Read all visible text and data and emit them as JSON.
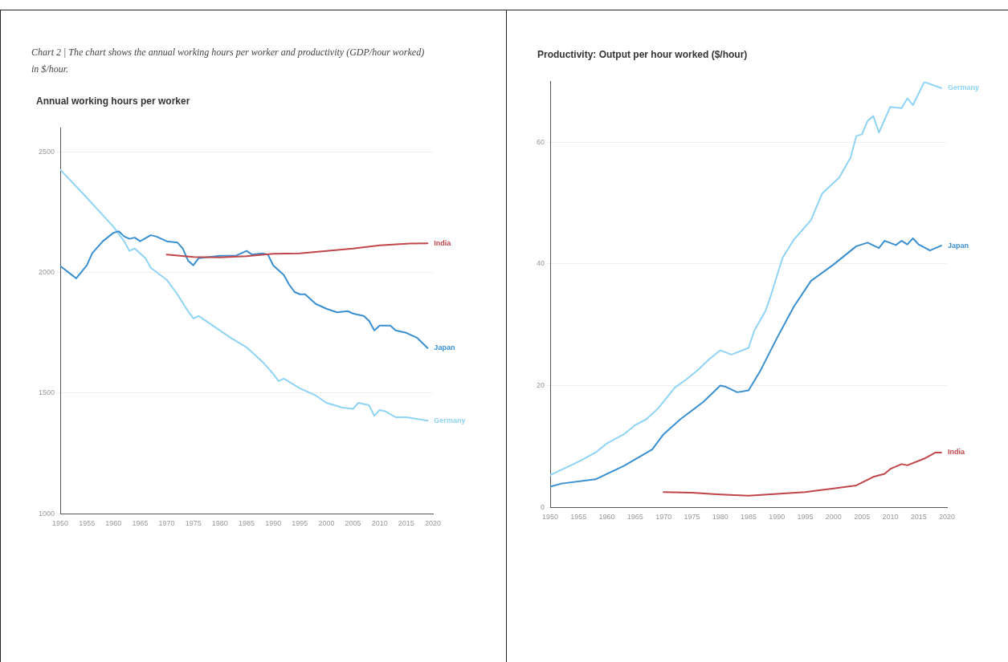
{
  "chart_data": [
    {
      "type": "line",
      "title": "Chart 2 | The chart shows the annual working hours per worker and productivity (GDP/hour worked) in $/hour.",
      "subtitle": "Annual working hours per worker",
      "xlim": [
        1950,
        2020
      ],
      "xticks": [
        1950,
        1955,
        1960,
        1965,
        1970,
        1975,
        1980,
        1985,
        1990,
        1995,
        2000,
        2005,
        2010,
        2015,
        2020
      ],
      "ylim": [
        1000,
        2600
      ],
      "yticks": [
        1000,
        1500,
        2000,
        2500
      ],
      "grid": "y",
      "legend": false,
      "marker": "none",
      "line_style": "solid",
      "series": [
        {
          "name": "India",
          "color": "#c0464b",
          "x": [
            1970,
            1975,
            1980,
            1985,
            1990,
            1995,
            2000,
            2005,
            2010,
            2015,
            2019
          ],
          "values": [
            2075,
            2065,
            2063,
            2068,
            2078,
            2080,
            2090,
            2100,
            2113,
            2120,
            2121
          ]
        },
        {
          "name": "Japan",
          "color": "#3a8fd0",
          "x": [
            1950,
            1953,
            1955,
            1956,
            1958,
            1960,
            1961,
            1962,
            1963,
            1964,
            1965,
            1967,
            1968,
            1970,
            1972,
            1973,
            1974,
            1975,
            1976,
            1980,
            1983,
            1985,
            1986,
            1988,
            1989,
            1990,
            1992,
            1993,
            1994,
            1995,
            1996,
            1998,
            2000,
            2002,
            2004,
            2005,
            2007,
            2008,
            2009,
            2010,
            2012,
            2013,
            2015,
            2017,
            2019
          ],
          "values": [
            2027,
            1976,
            2030,
            2080,
            2130,
            2165,
            2171,
            2150,
            2140,
            2145,
            2130,
            2155,
            2150,
            2130,
            2125,
            2100,
            2050,
            2030,
            2060,
            2070,
            2070,
            2090,
            2075,
            2080,
            2075,
            2030,
            1990,
            1950,
            1920,
            1910,
            1910,
            1870,
            1850,
            1835,
            1840,
            1830,
            1820,
            1800,
            1760,
            1780,
            1780,
            1760,
            1750,
            1730,
            1687
          ]
        },
        {
          "name": "Germany",
          "color": "#8fd3f5",
          "x": [
            1950,
            1955,
            1960,
            1962,
            1963,
            1964,
            1966,
            1967,
            1970,
            1972,
            1974,
            1975,
            1976,
            1980,
            1982,
            1985,
            1988,
            1990,
            1991,
            1992,
            1995,
            1998,
            2000,
            2003,
            2005,
            2006,
            2008,
            2009,
            2010,
            2011,
            2013,
            2015,
            2019
          ],
          "values": [
            2427,
            2310,
            2190,
            2130,
            2090,
            2100,
            2060,
            2020,
            1970,
            1910,
            1840,
            1810,
            1820,
            1760,
            1730,
            1690,
            1630,
            1580,
            1550,
            1560,
            1520,
            1490,
            1460,
            1440,
            1435,
            1460,
            1450,
            1406,
            1430,
            1425,
            1400,
            1400,
            1386
          ]
        }
      ]
    },
    {
      "type": "line",
      "title": "Productivity: Output per hour worked ($/hour)",
      "xlim": [
        1950,
        2020
      ],
      "xticks": [
        1950,
        1955,
        1960,
        1965,
        1970,
        1975,
        1980,
        1985,
        1990,
        1995,
        2000,
        2005,
        2010,
        2015,
        2020
      ],
      "ylim": [
        0,
        70
      ],
      "yticks": [
        0,
        20,
        40,
        60
      ],
      "grid": "y",
      "legend": false,
      "marker": "none",
      "line_style": "solid",
      "series": [
        {
          "name": "Germany",
          "color": "#8fd3f5",
          "x": [
            1950,
            1955,
            1958,
            1960,
            1963,
            1965,
            1967,
            1969,
            1972,
            1974,
            1976,
            1978,
            1980,
            1982,
            1985,
            1986,
            1988,
            1989,
            1991,
            1993,
            1996,
            1998,
            2001,
            2003,
            2004,
            2005,
            2006,
            2007,
            2008,
            2010,
            2012,
            2013,
            2014,
            2016,
            2019
          ],
          "values": [
            5.3,
            7.5,
            9,
            10.5,
            12,
            13.5,
            14.5,
            16.2,
            19.7,
            21,
            22.5,
            24.3,
            25.8,
            25.1,
            26.2,
            29,
            32.3,
            35,
            41,
            44,
            47.2,
            51.6,
            54.2,
            57.5,
            61,
            61.3,
            63.5,
            64.3,
            61.6,
            65.8,
            65.6,
            67.2,
            66.1,
            69.9,
            68.9
          ]
        },
        {
          "name": "Japan",
          "color": "#3a8fd0",
          "x": [
            1950,
            1952,
            1958,
            1963,
            1968,
            1970,
            1973,
            1977,
            1980,
            1981,
            1983,
            1985,
            1987,
            1990,
            1993,
            1996,
            2000,
            2004,
            2006,
            2008,
            2009,
            2011,
            2012,
            2013,
            2014,
            2015,
            2017,
            2019
          ],
          "values": [
            3.4,
            3.9,
            4.6,
            6.8,
            9.5,
            12,
            14.5,
            17.3,
            20,
            19.8,
            18.9,
            19.2,
            22.3,
            27.8,
            33,
            37.2,
            39.9,
            42.9,
            43.5,
            42.6,
            43.8,
            43.1,
            43.8,
            43.2,
            44.2,
            43.2,
            42.2,
            43
          ]
        },
        {
          "name": "India",
          "color": "#c0464b",
          "x": [
            1970,
            1975,
            1980,
            1985,
            1990,
            1995,
            2000,
            2004,
            2007,
            2009,
            2010,
            2012,
            2013,
            2016,
            2018,
            2019
          ],
          "values": [
            2.5,
            2.4,
            2.1,
            1.9,
            2.2,
            2.5,
            3.1,
            3.6,
            5,
            5.5,
            6.3,
            7.1,
            6.9,
            8,
            9,
            9
          ]
        }
      ]
    }
  ]
}
